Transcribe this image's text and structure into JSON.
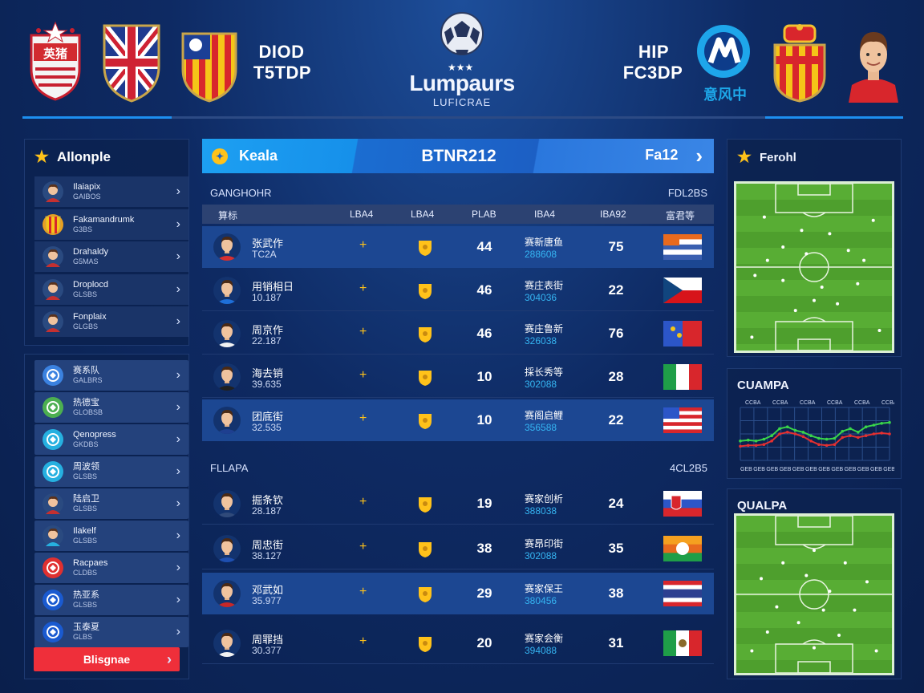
{
  "header": {
    "left_text_1": "DIOD",
    "left_text_2": "T5TDP",
    "logo_title": "Lumpaurs",
    "logo_subtitle": "LUFICRAE",
    "right_text_1": "HIP",
    "right_text_2": "FC3DP",
    "cn_text": "意风中",
    "left_crest_text": "英猪"
  },
  "sidebar": {
    "title": "Allonple",
    "group1": [
      {
        "name": "Ilaiapix",
        "sub": "GAIBOS",
        "icon": "player-icon",
        "color": "#c43030"
      },
      {
        "name": "Fakamandrumk",
        "sub": "G3BS",
        "icon": "crest-icon",
        "color": "#e8a020"
      },
      {
        "name": "Drahaldy",
        "sub": "G5MAS",
        "icon": "player-icon",
        "color": "#c43030"
      },
      {
        "name": "Droplocd",
        "sub": "GLSBS",
        "icon": "player-icon",
        "color": "#c43030"
      },
      {
        "name": "Fonplaix",
        "sub": "GLGBS",
        "icon": "player-icon",
        "color": "#c43030"
      }
    ],
    "group2": [
      {
        "name": "赛系队",
        "sub": "GALBRS",
        "icon": "team-icon",
        "color": "#3b82e0"
      },
      {
        "name": "热德宝",
        "sub": "GLOBSB",
        "icon": "team-icon",
        "color": "#4caf50"
      },
      {
        "name": "Qenopress",
        "sub": "GKDBS",
        "icon": "team-icon",
        "color": "#26b0e0"
      },
      {
        "name": "周波领",
        "sub": "GLSBS",
        "icon": "team-icon",
        "color": "#26b0e0"
      },
      {
        "name": "陆启卫",
        "sub": "GLSBS",
        "icon": "player-icon",
        "color": "#c43030"
      },
      {
        "name": "Ilakelf",
        "sub": "GLSBS",
        "icon": "player-icon",
        "color": "#26b0e0"
      },
      {
        "name": "Racpaes",
        "sub": "CLDBS",
        "icon": "team-icon",
        "color": "#e03030"
      },
      {
        "name": "热亚系",
        "sub": "GLSBS",
        "icon": "team-icon",
        "color": "#1a5ad0"
      },
      {
        "name": "玉泰夏",
        "sub": "GLBS",
        "icon": "team-icon",
        "color": "#1a5ad0"
      }
    ],
    "button_label": "Blisgnae"
  },
  "banner": {
    "left": "Keala",
    "center": "BTNR212",
    "right": "Fa12"
  },
  "section1": {
    "title": "GANGHOHR",
    "right": "FDL2BS"
  },
  "columns": [
    "算标",
    "LBA4",
    "LBA4",
    "PLAB",
    "IBA4",
    "IBA92",
    "富君等"
  ],
  "rows1": [
    {
      "name": "张武作",
      "num": "TC2A",
      "v1": "44",
      "ctext": "赛新唐鱼",
      "cnum": "288608",
      "v2": "75",
      "jersey": "#d83030",
      "flag": "flag-orange-stripes"
    },
    {
      "name": "用销相日",
      "num": "10.187",
      "v1": "46",
      "ctext": "赛庄表街",
      "cnum": "304036",
      "v2": "22",
      "jersey": "#1e6fd8",
      "flag": "flag-czech"
    },
    {
      "name": "周京作",
      "num": "22.187",
      "v1": "46",
      "ctext": "赛庄鲁新",
      "cnum": "326038",
      "v2": "76",
      "jersey": "#f2f2f2",
      "flag": "flag-red-blue"
    },
    {
      "name": "海去销",
      "num": "39.635",
      "v1": "10",
      "ctext": "採长秀等",
      "cnum": "302088",
      "v2": "28",
      "jersey": "#202020",
      "flag": "flag-italy"
    },
    {
      "name": "团底街",
      "num": "32.535",
      "v1": "10",
      "ctext": "赛阁启鲤",
      "cnum": "356588",
      "v2": "22",
      "jersey": "#1e3f90",
      "flag": "flag-usa"
    }
  ],
  "section2": {
    "title": "FLLAPA",
    "right": "4CL2B5"
  },
  "rows2": [
    {
      "name": "掘条钦",
      "num": "28.187",
      "v1": "19",
      "ctext": "赛家创析",
      "cnum": "388038",
      "v2": "24",
      "jersey": "#304a7a",
      "flag": "flag-slovakia"
    },
    {
      "name": "周忠街",
      "num": "38.127",
      "v1": "38",
      "ctext": "赛昂印街",
      "cnum": "302088",
      "v2": "35",
      "jersey": "#1e4fb0",
      "flag": "flag-sri-lanka"
    },
    {
      "name": "邓武如",
      "num": "35.977",
      "v1": "29",
      "ctext": "赛家保王",
      "cnum": "380456",
      "v2": "38",
      "jersey": "#c82828",
      "flag": "flag-thailand"
    },
    {
      "name": "周罪挡",
      "num": "30.377",
      "v1": "20",
      "ctext": "赛家会衡",
      "cnum": "394088",
      "v2": "31",
      "jersey": "#f2f2f2",
      "flag": "flag-mexico"
    }
  ],
  "right": {
    "pitch1_title": "Ferohl",
    "chart_title": "CUAMPA",
    "chart_top_labels": [
      "CCBA",
      "CCBA",
      "CCBA",
      "CCBA",
      "CCBA",
      "CCBA"
    ],
    "chart_bottom_labels": [
      "GEB",
      "GEB",
      "GEB",
      "GEB",
      "GEB",
      "GEB",
      "GEB",
      "GEB",
      "GEB",
      "GEB",
      "GEB",
      "GEB"
    ],
    "pitch2_title": "QUALPA"
  },
  "chart_data": {
    "type": "line",
    "title": "CUAMPA",
    "x": [
      1,
      2,
      3,
      4,
      5,
      6,
      7,
      8,
      9,
      10,
      11,
      12,
      13,
      14,
      15,
      16,
      17,
      18,
      19,
      20
    ],
    "series": [
      {
        "color": "#39d44a",
        "values": [
          52,
          53,
          52,
          54,
          58,
          66,
          68,
          64,
          62,
          58,
          55,
          54,
          55,
          63,
          66,
          62,
          68,
          70,
          72,
          73
        ]
      },
      {
        "color": "#e53030",
        "values": [
          46,
          47,
          47,
          48,
          52,
          60,
          62,
          60,
          57,
          52,
          48,
          47,
          48,
          56,
          58,
          56,
          58,
          60,
          61,
          60
        ]
      }
    ],
    "ylim": [
      30,
      90
    ],
    "grid": true
  },
  "colors": {
    "accent": "#1d8ff0",
    "button": "#ef2f3a",
    "star": "#ffc21a",
    "cyan_text": "#35b5f2"
  }
}
